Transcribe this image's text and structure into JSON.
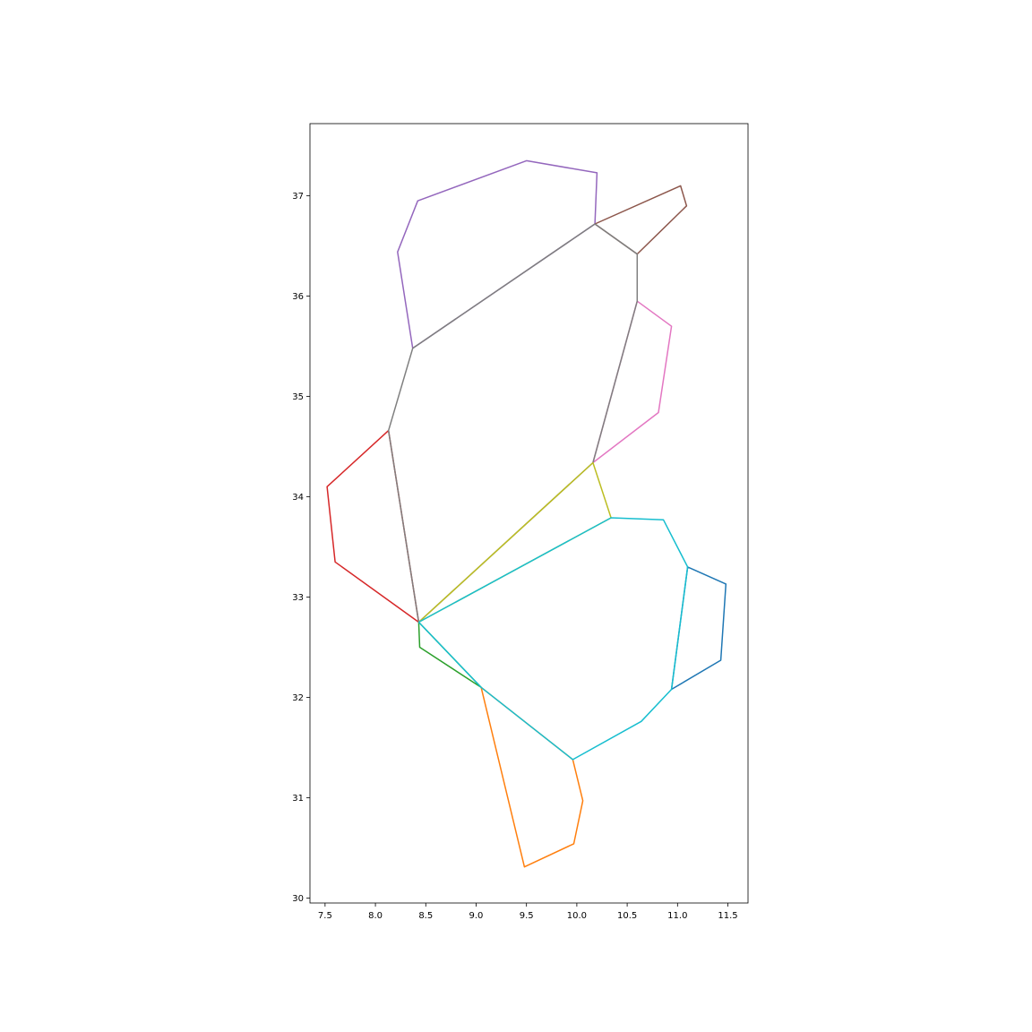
{
  "chart_data": {
    "type": "line",
    "title": "",
    "xlabel": "",
    "ylabel": "",
    "xlim": [
      7.35,
      11.7
    ],
    "ylim": [
      29.95,
      37.72
    ],
    "grid": false,
    "legend": "none",
    "x_ticks": [
      7.5,
      8.0,
      8.5,
      9.0,
      9.5,
      10.0,
      10.5,
      11.0,
      11.5
    ],
    "x_tick_labels": [
      "7.5",
      "8.0",
      "8.5",
      "9.0",
      "9.5",
      "10.0",
      "10.5",
      "11.0",
      "11.5"
    ],
    "y_ticks": [
      30,
      31,
      32,
      33,
      34,
      35,
      36,
      37
    ],
    "y_tick_labels": [
      "30",
      "31",
      "32",
      "33",
      "34",
      "35",
      "36",
      "37"
    ],
    "series": [
      {
        "color": "#1f77b4",
        "points": [
          [
            11.1,
            33.3
          ],
          [
            11.48,
            33.13
          ],
          [
            11.43,
            32.37
          ],
          [
            10.94,
            32.08
          ],
          [
            11.1,
            33.3
          ]
        ]
      },
      {
        "color": "#ff7f0e",
        "points": [
          [
            9.05,
            32.1
          ],
          [
            9.96,
            31.38
          ],
          [
            10.06,
            30.97
          ],
          [
            9.97,
            30.54
          ],
          [
            9.48,
            30.31
          ],
          [
            9.05,
            32.1
          ]
        ]
      },
      {
        "color": "#2ca02c",
        "points": [
          [
            8.43,
            32.75
          ],
          [
            8.44,
            32.5
          ],
          [
            9.05,
            32.1
          ],
          [
            8.43,
            32.75
          ]
        ]
      },
      {
        "color": "#d62728",
        "points": [
          [
            8.13,
            34.66
          ],
          [
            7.52,
            34.1
          ],
          [
            7.6,
            33.35
          ],
          [
            8.43,
            32.75
          ],
          [
            8.13,
            34.66
          ]
        ]
      },
      {
        "color": "#9467bd",
        "points": [
          [
            8.37,
            35.48
          ],
          [
            8.22,
            36.44
          ],
          [
            8.42,
            36.95
          ],
          [
            9.5,
            37.35
          ],
          [
            10.2,
            37.23
          ],
          [
            10.18,
            36.72
          ],
          [
            8.37,
            35.48
          ]
        ]
      },
      {
        "color": "#8c564b",
        "points": [
          [
            10.18,
            36.72
          ],
          [
            11.03,
            37.1
          ],
          [
            11.09,
            36.9
          ],
          [
            10.6,
            36.42
          ],
          [
            10.18,
            36.72
          ]
        ]
      },
      {
        "color": "#e377c2",
        "points": [
          [
            10.6,
            35.95
          ],
          [
            10.94,
            35.7
          ],
          [
            10.81,
            34.84
          ],
          [
            10.16,
            34.34
          ],
          [
            10.6,
            35.95
          ]
        ]
      },
      {
        "color": "#7f7f7f",
        "points": [
          [
            8.43,
            32.75
          ],
          [
            8.13,
            34.66
          ],
          [
            8.37,
            35.48
          ],
          [
            10.18,
            36.72
          ],
          [
            10.6,
            36.42
          ],
          [
            10.6,
            35.95
          ],
          [
            10.16,
            34.34
          ],
          [
            8.43,
            32.75
          ]
        ]
      },
      {
        "color": "#bcbd22",
        "points": [
          [
            8.43,
            32.75
          ],
          [
            10.16,
            34.34
          ],
          [
            10.34,
            33.79
          ],
          [
            8.43,
            32.75
          ]
        ]
      },
      {
        "color": "#17becf",
        "points": [
          [
            8.43,
            32.75
          ],
          [
            10.34,
            33.79
          ],
          [
            10.86,
            33.77
          ],
          [
            11.1,
            33.3
          ],
          [
            10.94,
            32.08
          ],
          [
            10.64,
            31.76
          ],
          [
            9.96,
            31.38
          ],
          [
            9.05,
            32.1
          ],
          [
            8.43,
            32.75
          ]
        ]
      }
    ]
  }
}
